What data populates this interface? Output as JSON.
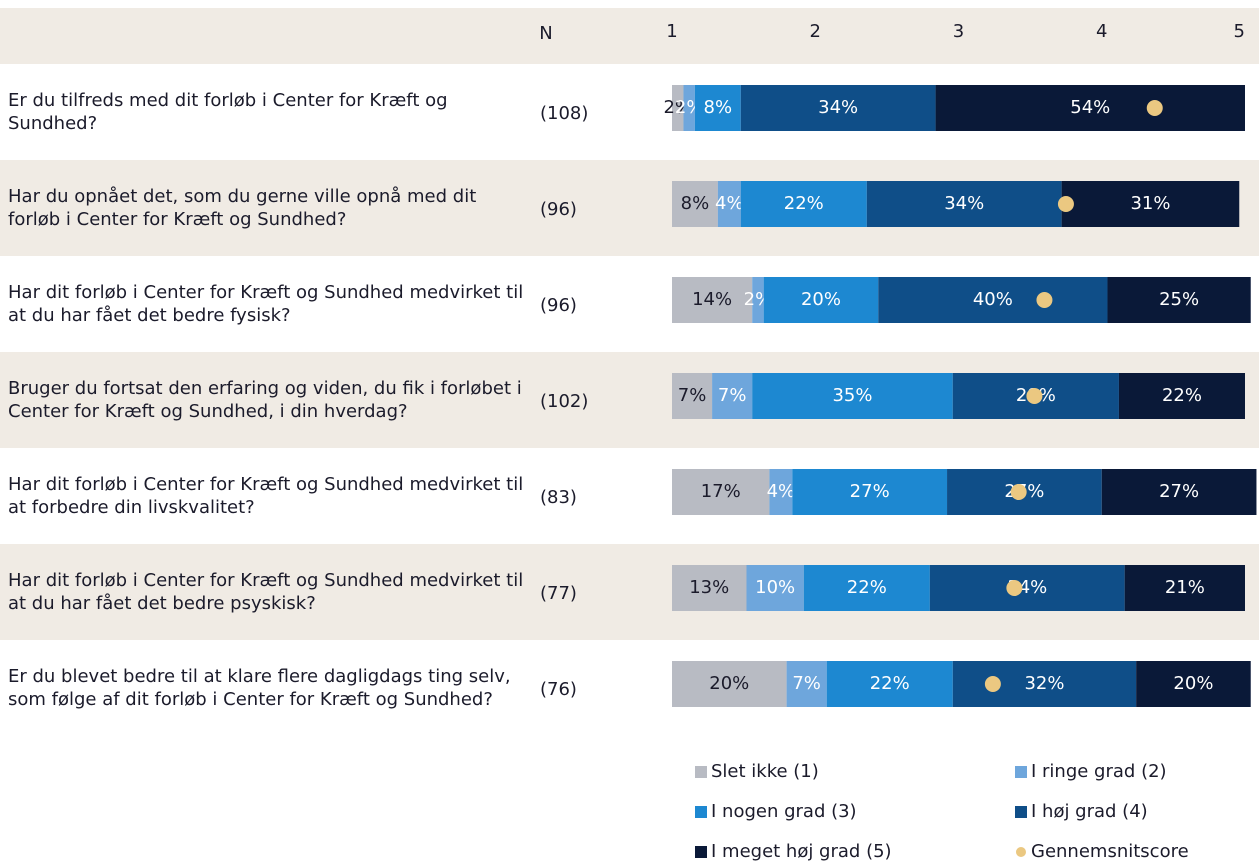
{
  "chart_data": {
    "type": "stacked-bar",
    "n_header": "N",
    "categories": [
      "Er du tilfreds med dit forløb i Center for Kræft og Sundhed?",
      "Har du opnået det, som du gerne ville opnå med dit forløb i Center for Kræft og Sundhed?",
      "Har dit forløb i Center for Kræft og Sundhed medvirket til at du har fået det bedre fysisk?",
      "Bruger du fortsat den erfaring og viden, du fik i forløbet i Center for Kræft og Sundhed, i din hverdag?",
      "Har dit forløb i Center for Kræft og Sundhed medvirket til at forbedre din livskvalitet?",
      "Har dit forløb i Center for Kræft og Sundhed medvirket til at du har fået det bedre psyskisk?",
      "Er du blevet bedre til at klare flere dagligdags ting selv, som følge af dit forløb i Center for Kræft og Sundhed?"
    ],
    "n_labels": [
      "(108)",
      "(96)",
      "(96)",
      "(102)",
      "(83)",
      "(77)",
      "(76)"
    ],
    "xlim": [
      0,
      100
    ],
    "x2lim": [
      1,
      5
    ],
    "x2ticks": [
      1,
      2,
      3,
      4,
      5
    ],
    "series": [
      {
        "name": "Slet ikke (1)",
        "color": "#b8bbc3",
        "values": [
          2,
          8,
          14,
          7,
          17,
          13,
          20
        ],
        "value_labels": [
          "2%",
          "8%",
          "14%",
          "7%",
          "17%",
          "13%",
          "20%"
        ]
      },
      {
        "name": "I ringe grad (2)",
        "color": "#6ea6dc",
        "values": [
          2,
          4,
          2,
          7,
          4,
          10,
          7
        ],
        "value_labels": [
          "2%",
          "4%",
          "2%",
          "7%",
          "4%",
          "10%",
          "7%"
        ]
      },
      {
        "name": "I nogen grad (3)",
        "color": "#1d88d1",
        "values": [
          8,
          22,
          20,
          35,
          27,
          22,
          22
        ],
        "value_labels": [
          "8%",
          "22%",
          "20%",
          "35%",
          "27%",
          "22%",
          "22%"
        ]
      },
      {
        "name": "I høj grad (4)",
        "color": "#0f4e88",
        "values": [
          34,
          34,
          40,
          29,
          27,
          34,
          32
        ],
        "value_labels": [
          "34%",
          "34%",
          "40%",
          "29%",
          "27%",
          "34%",
          "32%"
        ]
      },
      {
        "name": "I meget høj grad (5)",
        "color": "#0a1938",
        "values": [
          54,
          31,
          25,
          22,
          27,
          21,
          20
        ],
        "value_labels": [
          "54%",
          "31%",
          "25%",
          "22%",
          "27%",
          "21%",
          "20%"
        ]
      },
      {
        "name": "Gennemsnitscore",
        "color": "#ebc881",
        "axis": "x2",
        "values": [
          4.37,
          3.75,
          3.6,
          3.53,
          3.42,
          3.39,
          3.24
        ]
      }
    ]
  }
}
